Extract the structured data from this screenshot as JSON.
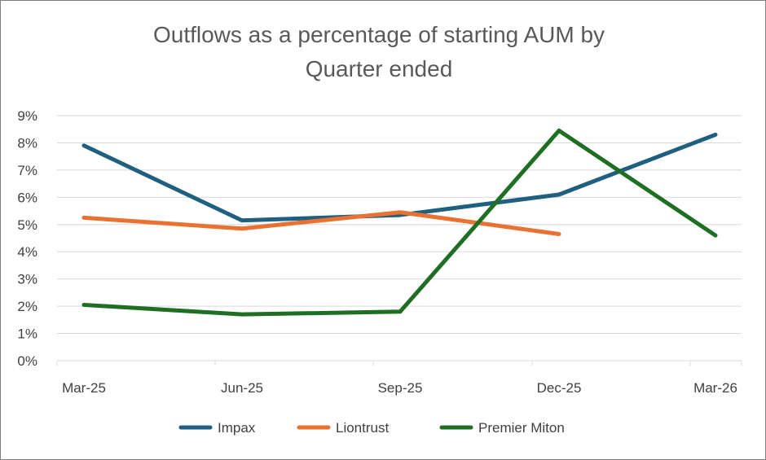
{
  "chart_data": {
    "type": "line",
    "title_line1": "Outflows as a percentage of starting AUM by",
    "title_line2": "Quarter ended",
    "categories": [
      "Mar-25",
      "Jun-25",
      "Sep-25",
      "Dec-25",
      "Mar-26"
    ],
    "y_ticks": [
      "0%",
      "1%",
      "2%",
      "3%",
      "4%",
      "5%",
      "6%",
      "7%",
      "8%",
      "9%"
    ],
    "ylim": [
      0,
      9
    ],
    "grid": true,
    "legend_position": "bottom",
    "series": [
      {
        "name": "Impax",
        "color": "#1f5f7f",
        "values": [
          7.9,
          5.15,
          5.35,
          6.1,
          8.3
        ]
      },
      {
        "name": "Liontrust",
        "color": "#e97132",
        "values": [
          5.25,
          4.85,
          5.45,
          4.65,
          null
        ]
      },
      {
        "name": "Premier Miton",
        "color": "#1e6e24",
        "values": [
          2.05,
          1.7,
          1.8,
          8.45,
          4.6
        ]
      }
    ]
  }
}
